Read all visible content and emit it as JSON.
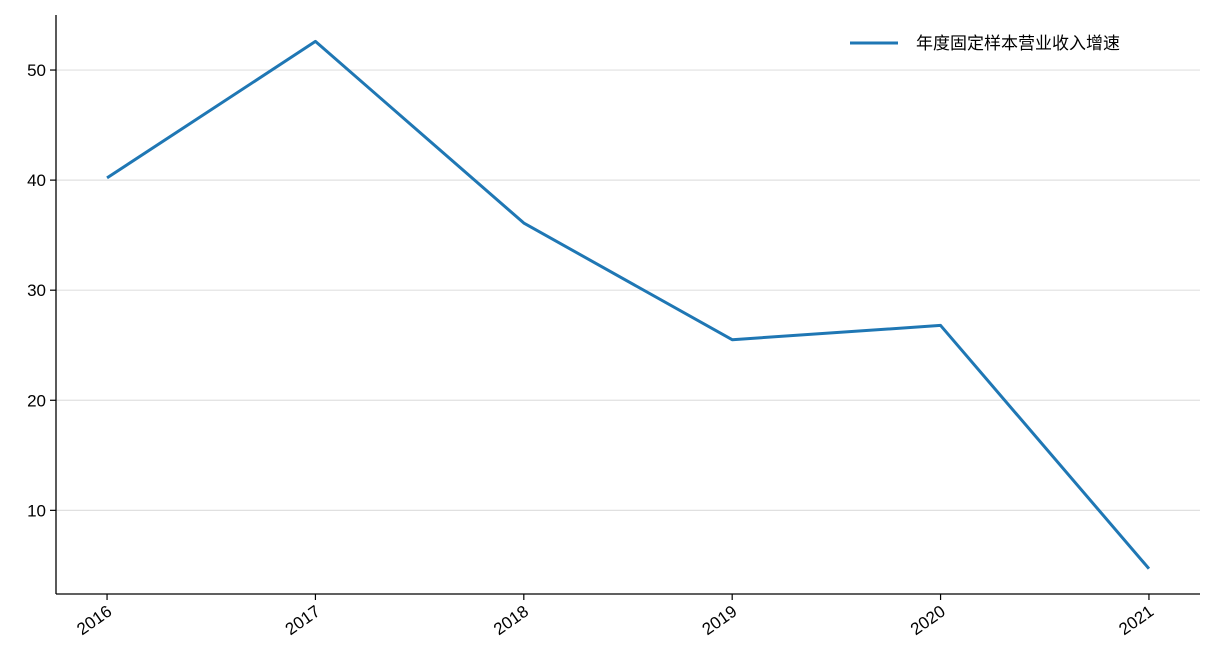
{
  "chart_data": {
    "type": "line",
    "categories": [
      "2016",
      "2017",
      "2018",
      "2019",
      "2020",
      "2021"
    ],
    "series": [
      {
        "name": "年度固定样本营业收入增速",
        "color": "#1f77b4",
        "values": [
          40.2,
          52.6,
          36.1,
          25.5,
          26.8,
          4.7
        ]
      }
    ],
    "ylim": [
      2.4,
      55.0
    ],
    "yticks": [
      10,
      20,
      30,
      40,
      50
    ],
    "grid": true,
    "legend": "upper right"
  }
}
